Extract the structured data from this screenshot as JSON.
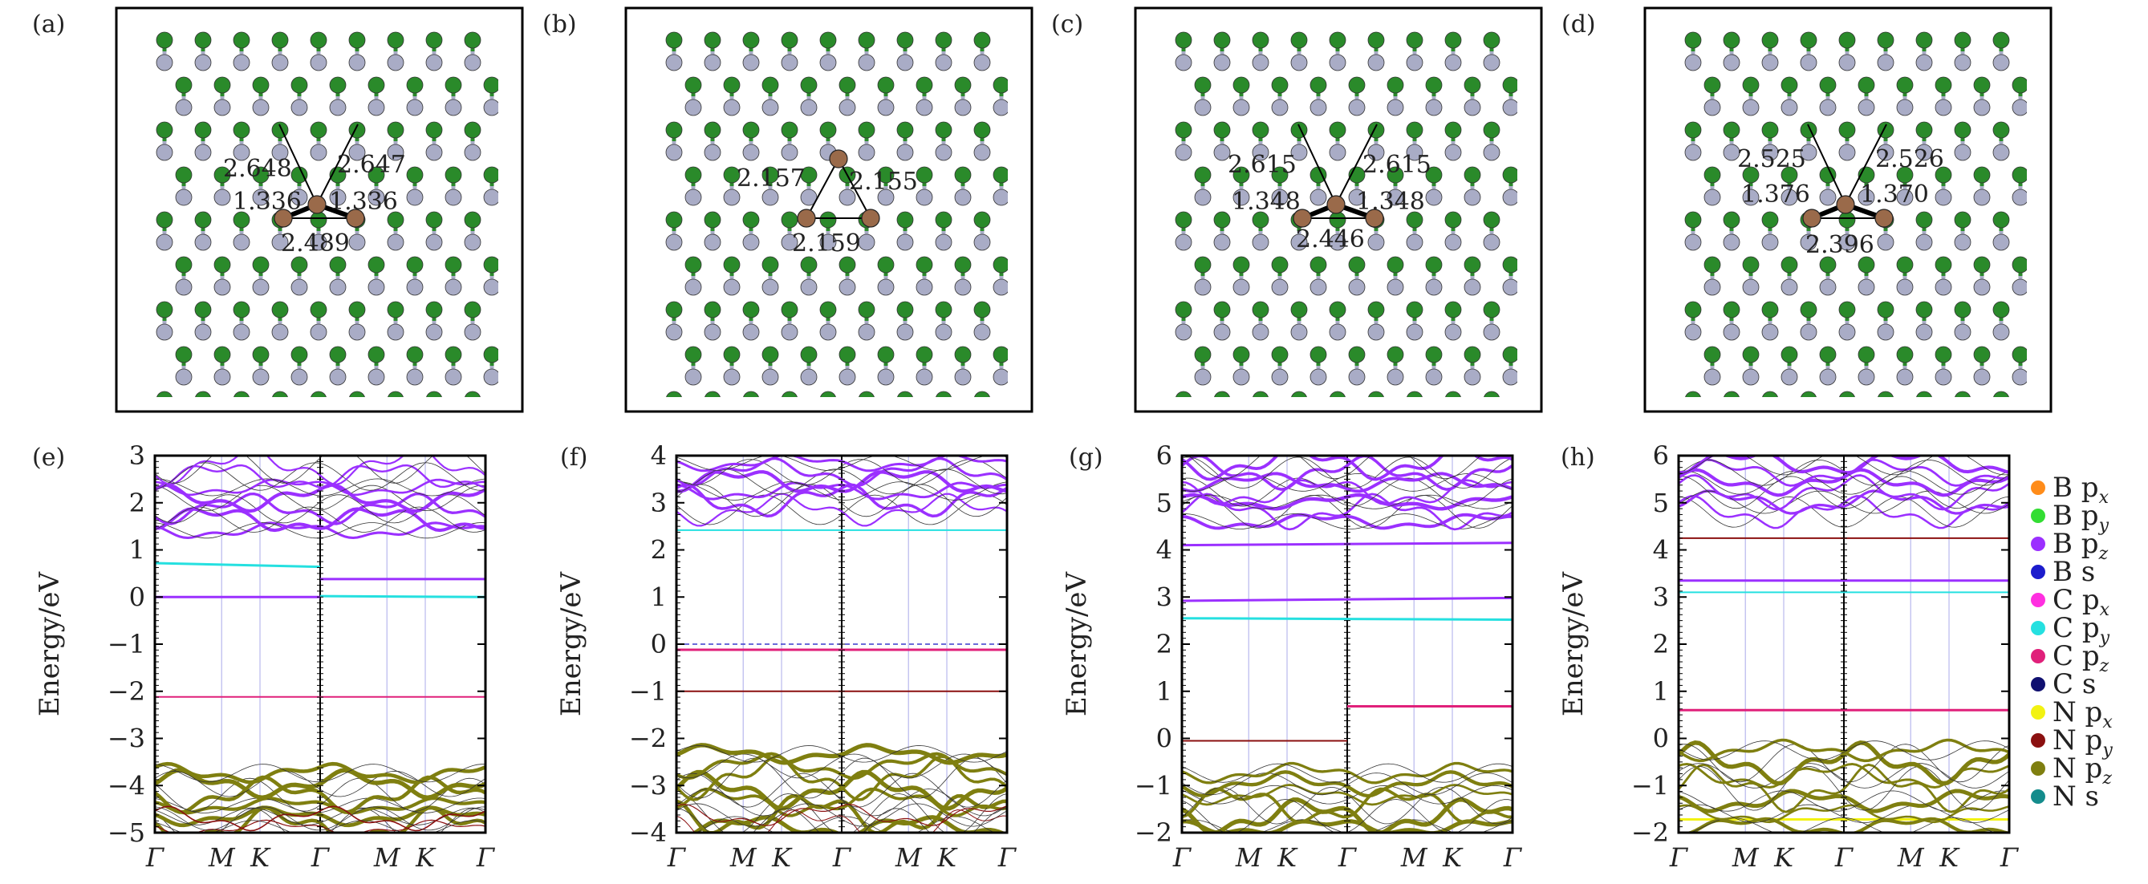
{
  "colors": {
    "B_px": "#ff8c1a",
    "B_py": "#33dd33",
    "B_pz": "#9b30ff",
    "B_s": "#1c1ccc",
    "C_px": "#ff2fe0",
    "C_py": "#25e0e0",
    "C_pz": "#e0207a",
    "C_s": "#101070",
    "N_px": "#f2f212",
    "N_py": "#8b1010",
    "N_pz": "#7f7f10",
    "N_s": "#148c8c",
    "atom_green": "#2a8a2a",
    "atom_gray": "#a9acc6",
    "atom_brown": "#9a6a4a"
  },
  "structures": [
    {
      "label": "(a)",
      "bond_lengths": [
        "2.648",
        "2.647",
        "1.336",
        "1.336",
        "2.489"
      ]
    },
    {
      "label": "(b)",
      "bond_lengths": [
        "2.157",
        "2.155",
        "2.159"
      ]
    },
    {
      "label": "(c)",
      "bond_lengths": [
        "2.615",
        "2.615",
        "1.348",
        "1.348",
        "2.446"
      ]
    },
    {
      "label": "(d)",
      "bond_lengths": [
        "2.525",
        "2.526",
        "1.376",
        "1.370",
        "2.396"
      ]
    }
  ],
  "legend": [
    {
      "element": "B",
      "orbital": "p",
      "sub": "x",
      "color": "#ff8c1a"
    },
    {
      "element": "B",
      "orbital": "p",
      "sub": "y",
      "color": "#33dd33"
    },
    {
      "element": "B",
      "orbital": "p",
      "sub": "z",
      "color": "#9b30ff"
    },
    {
      "element": "B",
      "orbital": "s",
      "sub": "",
      "color": "#1c1ccc"
    },
    {
      "element": "C",
      "orbital": "p",
      "sub": "x",
      "color": "#ff2fe0"
    },
    {
      "element": "C",
      "orbital": "p",
      "sub": "y",
      "color": "#25e0e0"
    },
    {
      "element": "C",
      "orbital": "p",
      "sub": "z",
      "color": "#e0207a"
    },
    {
      "element": "C",
      "orbital": "s",
      "sub": "",
      "color": "#101070"
    },
    {
      "element": "N",
      "orbital": "p",
      "sub": "x",
      "color": "#f2f212"
    },
    {
      "element": "N",
      "orbital": "p",
      "sub": "y",
      "color": "#8b1010"
    },
    {
      "element": "N",
      "orbital": "p",
      "sub": "z",
      "color": "#7f7f10"
    },
    {
      "element": "N",
      "orbital": "s",
      "sub": "",
      "color": "#148c8c"
    }
  ],
  "chart_data": [
    {
      "type": "line",
      "label": "(e)",
      "ylabel": "Energy/eV",
      "ylim": [
        -5,
        3
      ],
      "yticks": [
        "-5",
        "-4",
        "-3",
        "-2",
        "-1",
        "0",
        "1",
        "2",
        "3"
      ],
      "kpath": [
        "Γ",
        "M",
        "K",
        "Γ",
        "M",
        "K",
        "Γ"
      ],
      "kpos": [
        0,
        0.202,
        0.318,
        0.5,
        0.702,
        0.818,
        1.0
      ],
      "series": [
        {
          "name": "C py band (spin 1)",
          "color": "#25e0e0",
          "kind": "flat",
          "segment": 0,
          "y0": 0.72,
          "y1": 0.64,
          "w": 3
        },
        {
          "name": "C py band (spin 2)",
          "color": "#25e0e0",
          "kind": "flat",
          "segment": 1,
          "y0": 0.02,
          "y1": 0.0,
          "w": 3
        },
        {
          "name": "B pz band (spin 1)",
          "color": "#9b30ff",
          "kind": "flat",
          "segment": 0,
          "y0": 0.0,
          "y1": 0.0,
          "w": 3
        },
        {
          "name": "B pz band (spin 2)",
          "color": "#9b30ff",
          "kind": "flat",
          "segment": 1,
          "y0": 0.38,
          "y1": 0.38,
          "w": 3
        },
        {
          "name": "C pz band",
          "color": "#e0207a",
          "kind": "flat",
          "segment": 2,
          "y0": -2.12,
          "y1": -2.12,
          "w": 2
        },
        {
          "name": "B pz conduction",
          "color": "#9b30ff",
          "kind": "band",
          "from": 1.3,
          "to": 2.9,
          "n": 7,
          "w": 4
        },
        {
          "name": "N pz valence",
          "color": "#7f7f10",
          "kind": "band",
          "from": -5.0,
          "to": -3.62,
          "n": 6,
          "w": 5
        },
        {
          "name": "N py valence",
          "color": "#8b1010",
          "kind": "band",
          "from": -5.0,
          "to": -4.6,
          "n": 2,
          "w": 2
        }
      ]
    },
    {
      "type": "line",
      "label": "(f)",
      "ylabel": "Energy/eV",
      "ylim": [
        -4,
        4
      ],
      "yticks": [
        "-4",
        "-3",
        "-2",
        "-1",
        "0",
        "1",
        "2",
        "3",
        "4"
      ],
      "kpath": [
        "Γ",
        "M",
        "K",
        "Γ",
        "M",
        "K",
        "Γ"
      ],
      "kpos": [
        0,
        0.202,
        0.318,
        0.5,
        0.702,
        0.818,
        1.0
      ],
      "series": [
        {
          "name": "Fermi level",
          "color": "#3a3acc",
          "kind": "flat",
          "segment": 2,
          "y0": 0.0,
          "y1": 0.0,
          "w": 1.5,
          "dash": "6,4"
        },
        {
          "name": "C pz band",
          "color": "#e0207a",
          "kind": "flat",
          "segment": 2,
          "y0": -0.12,
          "y1": -0.12,
          "w": 3
        },
        {
          "name": "N py band",
          "color": "#8b1010",
          "kind": "flat",
          "segment": 2,
          "y0": -1.0,
          "y1": -1.0,
          "w": 2
        },
        {
          "name": "C py band",
          "color": "#25e0e0",
          "kind": "flat",
          "segment": 2,
          "y0": 2.42,
          "y1": 2.42,
          "w": 2
        },
        {
          "name": "B pz conduction",
          "color": "#9b30ff",
          "kind": "band",
          "from": 2.75,
          "to": 3.95,
          "n": 6,
          "w": 4
        },
        {
          "name": "N pz valence",
          "color": "#7f7f10",
          "kind": "band",
          "from": -4.0,
          "to": -2.2,
          "n": 7,
          "w": 5
        },
        {
          "name": "N py valence",
          "color": "#8b1010",
          "kind": "band",
          "from": -4.0,
          "to": -3.5,
          "n": 2,
          "w": 2
        }
      ]
    },
    {
      "type": "line",
      "label": "(g)",
      "ylabel": "Energy/eV",
      "ylim": [
        -2,
        6
      ],
      "yticks": [
        "-2",
        "-1",
        "0",
        "1",
        "2",
        "3",
        "4",
        "5",
        "6"
      ],
      "kpath": [
        "Γ",
        "M",
        "K",
        "Γ",
        "M",
        "K",
        "Γ"
      ],
      "kpos": [
        0,
        0.202,
        0.318,
        0.5,
        0.702,
        0.818,
        1.0
      ],
      "series": [
        {
          "name": "B pz band",
          "color": "#9b30ff",
          "kind": "flat",
          "segment": 2,
          "y0": 4.1,
          "y1": 4.15,
          "w": 3
        },
        {
          "name": "B pz band 2",
          "color": "#9b30ff",
          "kind": "flat",
          "segment": 2,
          "y0": 2.92,
          "y1": 2.98,
          "w": 3
        },
        {
          "name": "C py band",
          "color": "#25e0e0",
          "kind": "flat",
          "segment": 2,
          "y0": 2.55,
          "y1": 2.52,
          "w": 3
        },
        {
          "name": "C pz band (spin 2)",
          "color": "#e0207a",
          "kind": "flat",
          "segment": 1,
          "y0": 0.68,
          "y1": 0.68,
          "w": 3
        },
        {
          "name": "N py band (spin 1)",
          "color": "#8b1010",
          "kind": "flat",
          "segment": 0,
          "y0": -0.05,
          "y1": -0.05,
          "w": 2
        },
        {
          "name": "B pz conduction",
          "color": "#9b30ff",
          "kind": "band",
          "from": 4.5,
          "to": 5.95,
          "n": 7,
          "w": 4
        },
        {
          "name": "N pz valence",
          "color": "#7f7f10",
          "kind": "band",
          "from": -2.0,
          "to": -0.62,
          "n": 6,
          "w": 5
        }
      ]
    },
    {
      "type": "line",
      "label": "(h)",
      "ylabel": "Energy/eV",
      "ylim": [
        -2,
        6
      ],
      "yticks": [
        "-2",
        "-1",
        "0",
        "1",
        "2",
        "3",
        "4",
        "5",
        "6"
      ],
      "kpath": [
        "Γ",
        "M",
        "K",
        "Γ",
        "M",
        "K",
        "Γ"
      ],
      "kpos": [
        0,
        0.202,
        0.318,
        0.5,
        0.702,
        0.818,
        1.0
      ],
      "series": [
        {
          "name": "N py band",
          "color": "#8b1010",
          "kind": "flat",
          "segment": 2,
          "y0": 4.25,
          "y1": 4.25,
          "w": 2
        },
        {
          "name": "B pz band",
          "color": "#9b30ff",
          "kind": "flat",
          "segment": 2,
          "y0": 3.35,
          "y1": 3.35,
          "w": 3
        },
        {
          "name": "C py band",
          "color": "#25e0e0",
          "kind": "flat",
          "segment": 2,
          "y0": 3.1,
          "y1": 3.1,
          "w": 2
        },
        {
          "name": "C pz band",
          "color": "#e0207a",
          "kind": "flat",
          "segment": 2,
          "y0": 0.6,
          "y1": 0.6,
          "w": 3
        },
        {
          "name": "N px band",
          "color": "#f2f212",
          "kind": "flat",
          "segment": 2,
          "y0": -1.72,
          "y1": -1.72,
          "w": 3
        },
        {
          "name": "B pz conduction",
          "color": "#9b30ff",
          "kind": "band",
          "from": 4.7,
          "to": 5.95,
          "n": 6,
          "w": 4
        },
        {
          "name": "N pz valence",
          "color": "#7f7f10",
          "kind": "band",
          "from": -2.0,
          "to": -0.12,
          "n": 7,
          "w": 5
        }
      ]
    }
  ]
}
